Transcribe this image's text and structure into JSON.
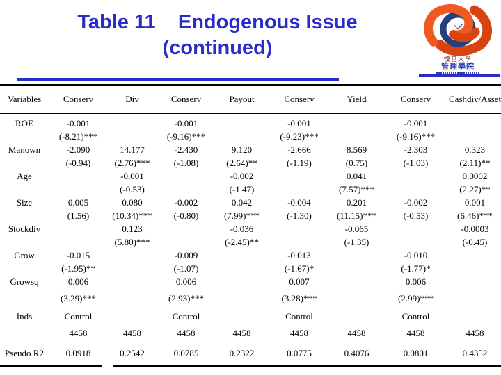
{
  "slide": {
    "title_line1": "Table 11    Endogenous Issue",
    "title_line2": "(continued)"
  },
  "logo": {
    "icon": "fudan-management-knot-emblem",
    "caption_line1": "復旦大學",
    "caption_line2": "管理學院"
  },
  "colors": {
    "title_blue": "#2b2bc8",
    "rule_black": "#000000",
    "ribbon_orange": "#f05a22",
    "ribbon_red": "#d8430f",
    "emblem_navy": "#24407f"
  },
  "table": {
    "columns": [
      "Variables",
      "Conserv",
      "Div",
      "Conserv",
      "Payout",
      "Conserv",
      "Yield",
      "Conserv",
      "Cashdiv/Asset"
    ],
    "rows": [
      {
        "label": "ROE",
        "coef": [
          "-0.001",
          "",
          "-0.001",
          "",
          "-0.001",
          "",
          "-0.001",
          ""
        ],
        "tstat": [
          "(-8.21)***",
          "",
          "(-9.16)***",
          "",
          "(-9.23)***",
          "",
          "(-9.16)***",
          ""
        ]
      },
      {
        "label": "Manown",
        "coef": [
          "-2.090",
          "14.177",
          "-2.430",
          "9.120",
          "-2.666",
          "8.569",
          "-2.303",
          "0.323"
        ],
        "tstat": [
          "(-0.94)",
          "(2.76)***",
          "(-1.08)",
          "(2.64)**",
          "(-1.19)",
          "(0.75)",
          "(-1.03)",
          "(2.11)**"
        ]
      },
      {
        "label": "Age",
        "coef": [
          "",
          "-0.001",
          "",
          "-0.002",
          "",
          "0.041",
          "",
          "0.0002"
        ],
        "tstat": [
          "",
          "(-0.53)",
          "",
          "(-1.47)",
          "",
          "(7.57)***",
          "",
          "(2.27)**"
        ]
      },
      {
        "label": "Size",
        "coef": [
          "0.005",
          "0.080",
          "-0.002",
          "0.042",
          "-0.004",
          "0.201",
          "-0.002",
          "0.001"
        ],
        "tstat": [
          "(1.56)",
          "(10.34)***",
          "(-0.80)",
          "(7.99)***",
          "(-1.30)",
          "(11.15)***",
          "(-0.53)",
          "(6.46)***"
        ]
      },
      {
        "label": "Stockdiv",
        "coef": [
          "",
          "0.123",
          "",
          "-0.036",
          "",
          "-0.065",
          "",
          "-0.0003"
        ],
        "tstat": [
          "",
          "(5.80)***",
          "",
          "(-2.45)**",
          "",
          "(-1.35)",
          "",
          "(-0.45)"
        ]
      },
      {
        "label": "Grow",
        "coef": [
          "-0.015",
          "",
          "-0.009",
          "",
          "-0.013",
          "",
          "-0.010",
          ""
        ],
        "tstat": [
          "(-1.95)**",
          "",
          "(-1.07)",
          "",
          "(-1.67)*",
          "",
          "(-1.77)*",
          ""
        ]
      },
      {
        "label": "Growsq",
        "coef": [
          "0.006",
          "",
          "0.006",
          "",
          "0.007",
          "",
          "0.006",
          ""
        ],
        "tstat": [
          "(3.29)***",
          "",
          "(2.93)***",
          "",
          "(3.28)***",
          "",
          "(2.99)***",
          ""
        ]
      },
      {
        "label": "Inds",
        "coef": [
          "Control",
          "",
          "Control",
          "",
          "Control",
          "",
          "Control",
          ""
        ],
        "tstat": null
      },
      {
        "label": "",
        "coef": [
          "4458",
          "4458",
          "4458",
          "4458",
          "4458",
          "4458",
          "4458",
          "4458"
        ],
        "tstat": null
      },
      {
        "label": "Pseudo R2",
        "coef": [
          "0.0918",
          "0.2542",
          "0.0785",
          "0.2322",
          "0.0775",
          "0.4076",
          "0.0801",
          "0.4352"
        ],
        "tstat": null
      }
    ]
  }
}
